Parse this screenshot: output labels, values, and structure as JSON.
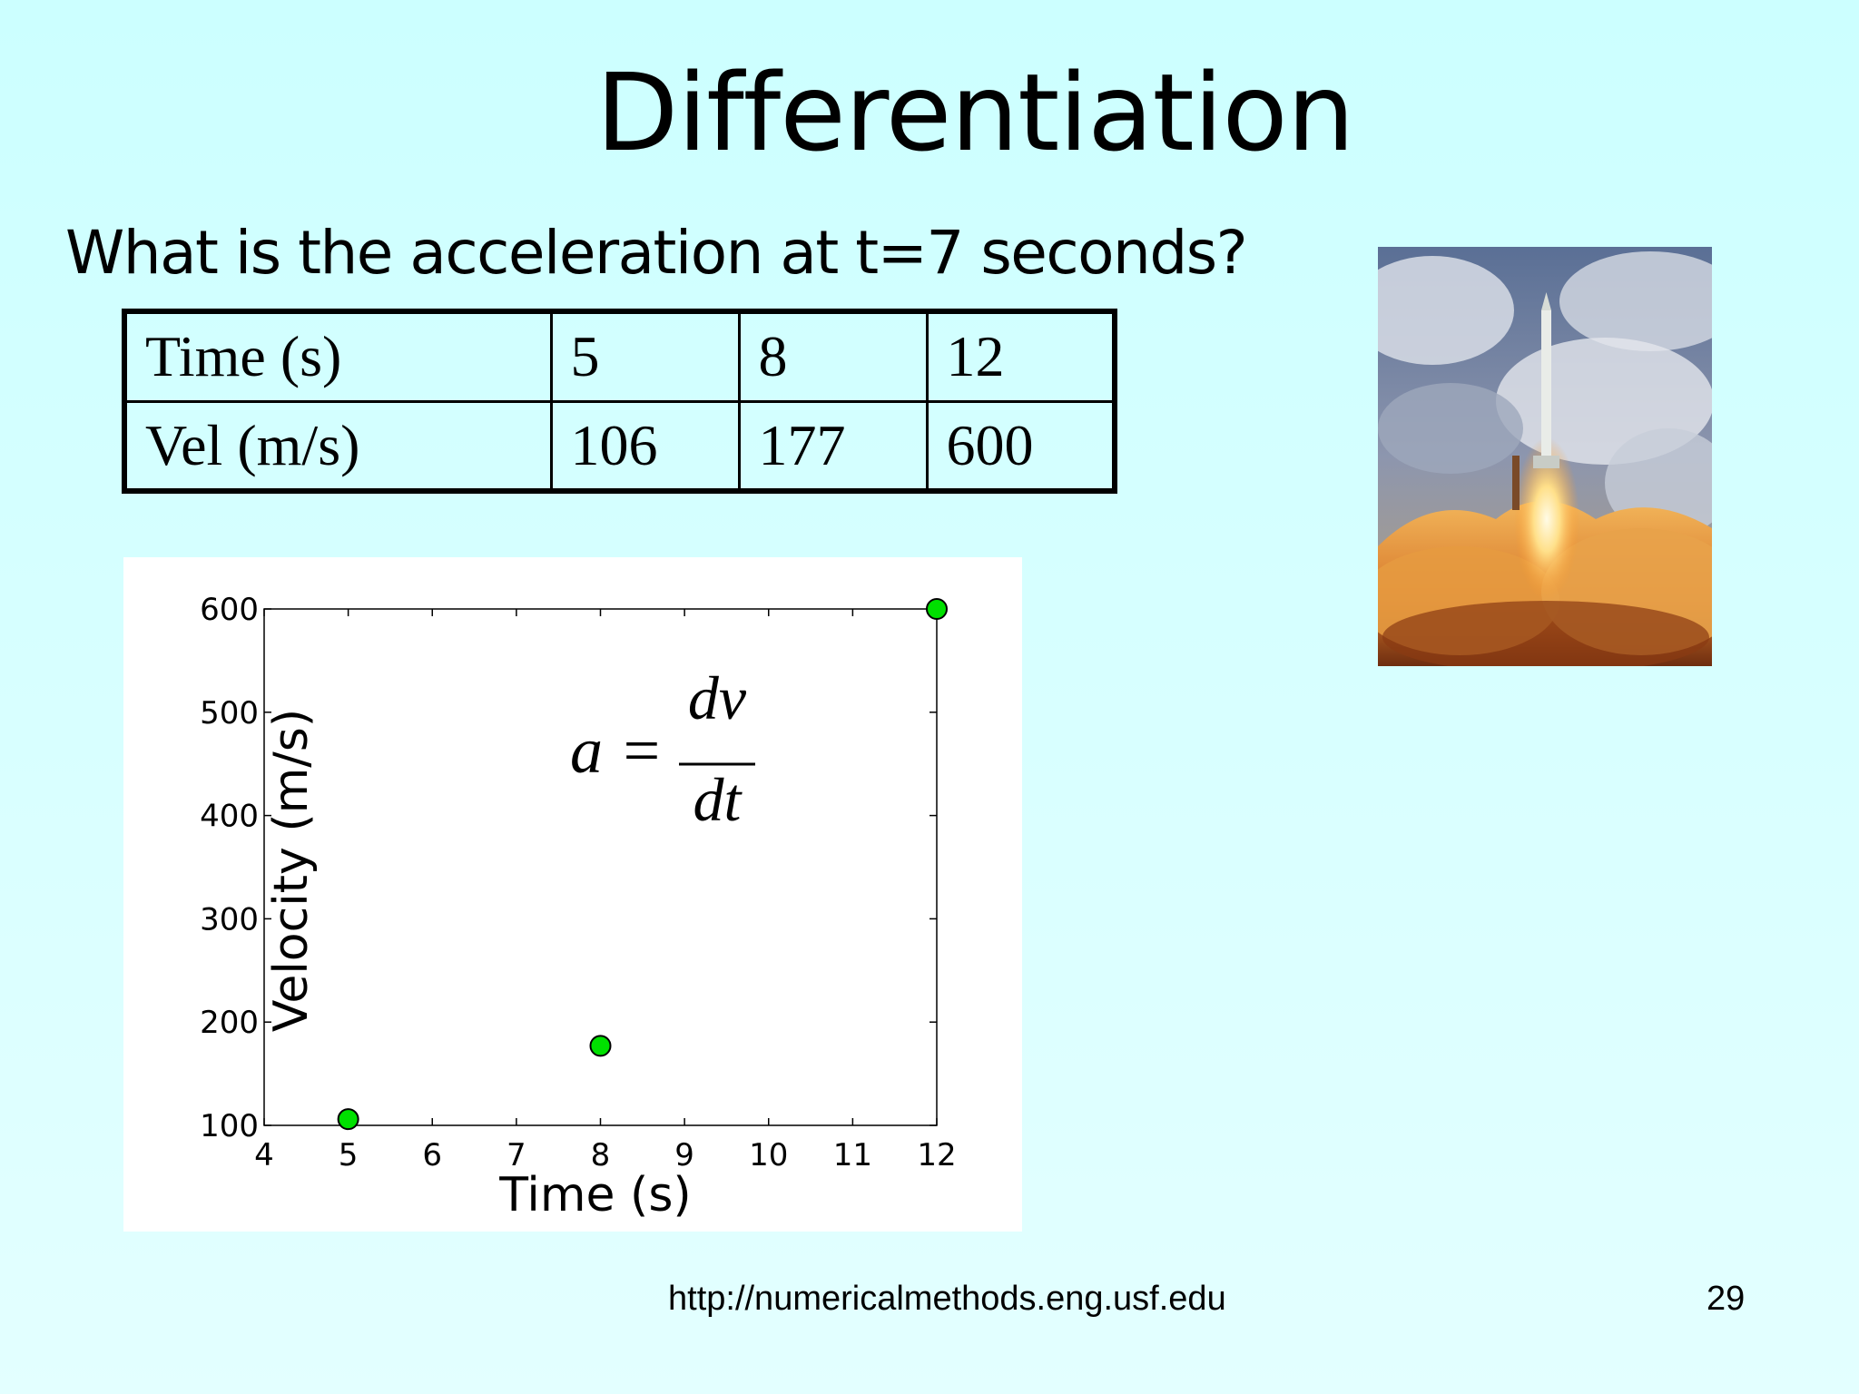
{
  "slide": {
    "title": "Differentiation",
    "question": "What is the acceleration at t=7 seconds?",
    "footer_url": "http://numericalmethods.eng.usf.edu",
    "page_number": "29"
  },
  "table": {
    "rows": [
      {
        "label": "Time (s)",
        "values": [
          "5",
          "8",
          "12"
        ]
      },
      {
        "label": "Vel (m/s)",
        "values": [
          "106",
          "177",
          "600"
        ]
      }
    ]
  },
  "formula": {
    "lhs": "a =",
    "numerator": "dv",
    "denominator": "dt"
  },
  "image": {
    "icon": "rocket-launch-photo"
  },
  "chart_data": {
    "type": "scatter",
    "x": [
      5,
      8,
      12
    ],
    "y": [
      106,
      177,
      600
    ],
    "xlabel": "Time (s)",
    "ylabel": "Velocity (m/s)",
    "xlim": [
      4,
      12
    ],
    "ylim": [
      100,
      600
    ],
    "xticks": [
      4,
      5,
      6,
      7,
      8,
      9,
      10,
      11,
      12
    ],
    "yticks": [
      100,
      200,
      300,
      400,
      500,
      600
    ],
    "marker_color": "#00e000",
    "grid": false
  }
}
